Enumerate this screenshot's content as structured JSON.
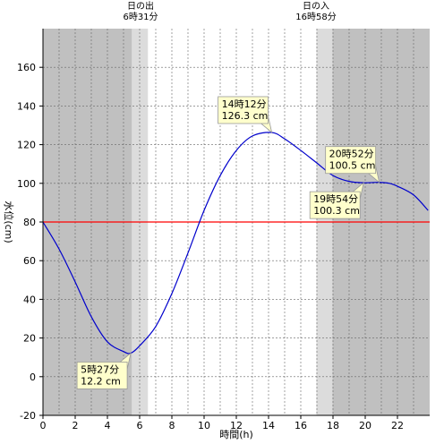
{
  "sun": {
    "sunrise_title": "日の出",
    "sunrise_time": "6時31分",
    "sunset_title": "日の入",
    "sunset_time": "16時58分"
  },
  "chart_data": {
    "type": "line",
    "xlabel": "時間(h)",
    "ylabel": "水位(cm)",
    "xlim": [
      0,
      24
    ],
    "ylim": [
      -20,
      180
    ],
    "x_ticks": [
      0,
      2,
      4,
      6,
      8,
      10,
      12,
      14,
      16,
      18,
      20,
      22
    ],
    "y_ticks": [
      -20,
      0,
      20,
      40,
      60,
      80,
      100,
      120,
      140,
      160
    ],
    "grid": true,
    "reference_line": {
      "value": 80,
      "color": "#ff0000"
    },
    "series_color": "#0000cc",
    "points": [
      [
        0,
        80
      ],
      [
        1,
        66
      ],
      [
        2,
        49
      ],
      [
        3,
        31
      ],
      [
        4,
        18
      ],
      [
        5,
        13
      ],
      [
        5.45,
        12.2
      ],
      [
        6,
        16
      ],
      [
        7,
        26
      ],
      [
        8,
        43
      ],
      [
        9,
        64
      ],
      [
        10,
        86
      ],
      [
        11,
        104
      ],
      [
        12,
        117
      ],
      [
        13,
        124.5
      ],
      [
        14.2,
        126.3
      ],
      [
        15,
        123
      ],
      [
        16,
        117
      ],
      [
        17,
        110.5
      ],
      [
        18,
        104
      ],
      [
        19,
        101
      ],
      [
        19.9,
        100.3
      ],
      [
        20.87,
        100.5
      ],
      [
        21.5,
        100
      ],
      [
        22,
        98.5
      ],
      [
        23,
        94
      ],
      [
        23.9,
        86
      ]
    ],
    "annotations": [
      {
        "time": "5時27分",
        "value": "12.2 cm",
        "x": 5.45,
        "y": 12.2,
        "anchor": "below-left"
      },
      {
        "time": "14時12分",
        "value": "126.3 cm",
        "x": 14.2,
        "y": 126.3,
        "anchor": "above-left"
      },
      {
        "time": "20時52分",
        "value": "100.5 cm",
        "x": 20.87,
        "y": 100.5,
        "anchor": "above-left"
      },
      {
        "time": "19時54分",
        "value": "100.3 cm",
        "x": 19.9,
        "y": 100.3,
        "anchor": "below-left"
      }
    ],
    "shading": {
      "night_color": "#c0c0c0",
      "twilight_color": "#dcdcdc",
      "day_color": "#ffffff",
      "sunrise_hour": 6.52,
      "sunset_hour": 16.97,
      "twilight_hours": 0.5
    }
  }
}
